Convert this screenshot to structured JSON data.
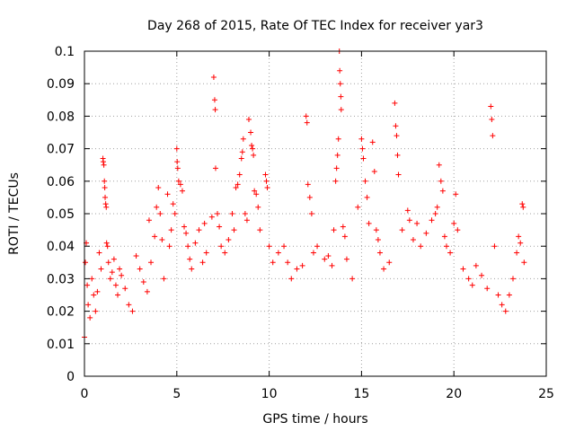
{
  "chart_data": {
    "type": "scatter",
    "title": "Day 268 of 2015, Rate Of TEC Index for receiver yar3",
    "xlabel": "GPS time / hours",
    "ylabel": "ROTI / TECUs",
    "xlim": [
      0,
      25
    ],
    "ylim": [
      0,
      0.1
    ],
    "xticks": [
      "0",
      "5",
      "10",
      "15",
      "20",
      "25"
    ],
    "yticks": [
      "0",
      "0.01",
      "0.02",
      "0.03",
      "0.04",
      "0.05",
      "0.06",
      "0.07",
      "0.08",
      "0.09",
      "0.1"
    ],
    "grid": true,
    "marker": "+",
    "color": "#ff0000",
    "series": [
      {
        "name": "",
        "points": [
          [
            0.0,
            0.012
          ],
          [
            0.05,
            0.035
          ],
          [
            0.1,
            0.041
          ],
          [
            0.15,
            0.028
          ],
          [
            0.2,
            0.022
          ],
          [
            0.3,
            0.018
          ],
          [
            0.4,
            0.03
          ],
          [
            0.5,
            0.025
          ],
          [
            0.6,
            0.02
          ],
          [
            0.7,
            0.026
          ],
          [
            0.8,
            0.038
          ],
          [
            0.9,
            0.033
          ],
          [
            1.0,
            0.067
          ],
          [
            1.02,
            0.066
          ],
          [
            1.05,
            0.065
          ],
          [
            1.08,
            0.06
          ],
          [
            1.1,
            0.058
          ],
          [
            1.12,
            0.055
          ],
          [
            1.15,
            0.053
          ],
          [
            1.18,
            0.052
          ],
          [
            1.2,
            0.041
          ],
          [
            1.25,
            0.04
          ],
          [
            1.3,
            0.035
          ],
          [
            1.4,
            0.03
          ],
          [
            1.5,
            0.032
          ],
          [
            1.6,
            0.036
          ],
          [
            1.7,
            0.028
          ],
          [
            1.8,
            0.025
          ],
          [
            1.9,
            0.033
          ],
          [
            2.0,
            0.031
          ],
          [
            2.2,
            0.027
          ],
          [
            2.4,
            0.022
          ],
          [
            2.6,
            0.02
          ],
          [
            2.8,
            0.037
          ],
          [
            3.0,
            0.033
          ],
          [
            3.2,
            0.029
          ],
          [
            3.4,
            0.026
          ],
          [
            3.5,
            0.048
          ],
          [
            3.6,
            0.035
          ],
          [
            3.8,
            0.043
          ],
          [
            3.9,
            0.052
          ],
          [
            4.0,
            0.058
          ],
          [
            4.1,
            0.05
          ],
          [
            4.2,
            0.042
          ],
          [
            4.3,
            0.03
          ],
          [
            4.5,
            0.056
          ],
          [
            4.6,
            0.04
          ],
          [
            4.7,
            0.045
          ],
          [
            4.8,
            0.053
          ],
          [
            4.9,
            0.05
          ],
          [
            5.0,
            0.07
          ],
          [
            5.02,
            0.066
          ],
          [
            5.05,
            0.064
          ],
          [
            5.1,
            0.06
          ],
          [
            5.2,
            0.059
          ],
          [
            5.3,
            0.057
          ],
          [
            5.4,
            0.046
          ],
          [
            5.5,
            0.044
          ],
          [
            5.6,
            0.04
          ],
          [
            5.7,
            0.036
          ],
          [
            5.8,
            0.033
          ],
          [
            6.0,
            0.041
          ],
          [
            6.2,
            0.045
          ],
          [
            6.4,
            0.035
          ],
          [
            6.5,
            0.047
          ],
          [
            6.6,
            0.038
          ],
          [
            6.9,
            0.049
          ],
          [
            7.0,
            0.092
          ],
          [
            7.05,
            0.085
          ],
          [
            7.08,
            0.082
          ],
          [
            7.1,
            0.064
          ],
          [
            7.2,
            0.05
          ],
          [
            7.3,
            0.046
          ],
          [
            7.4,
            0.04
          ],
          [
            7.6,
            0.038
          ],
          [
            7.8,
            0.042
          ],
          [
            8.0,
            0.05
          ],
          [
            8.1,
            0.045
          ],
          [
            8.2,
            0.058
          ],
          [
            8.3,
            0.059
          ],
          [
            8.4,
            0.062
          ],
          [
            8.5,
            0.067
          ],
          [
            8.55,
            0.069
          ],
          [
            8.6,
            0.073
          ],
          [
            8.7,
            0.05
          ],
          [
            8.8,
            0.048
          ],
          [
            8.9,
            0.079
          ],
          [
            9.0,
            0.075
          ],
          [
            9.05,
            0.071
          ],
          [
            9.1,
            0.07
          ],
          [
            9.15,
            0.068
          ],
          [
            9.2,
            0.057
          ],
          [
            9.3,
            0.056
          ],
          [
            9.4,
            0.052
          ],
          [
            9.5,
            0.045
          ],
          [
            9.8,
            0.062
          ],
          [
            9.85,
            0.06
          ],
          [
            9.9,
            0.058
          ],
          [
            10.0,
            0.04
          ],
          [
            10.2,
            0.035
          ],
          [
            10.5,
            0.038
          ],
          [
            10.8,
            0.04
          ],
          [
            11.0,
            0.035
          ],
          [
            11.2,
            0.03
          ],
          [
            11.5,
            0.033
          ],
          [
            11.8,
            0.034
          ],
          [
            12.0,
            0.08
          ],
          [
            12.05,
            0.078
          ],
          [
            12.1,
            0.059
          ],
          [
            12.2,
            0.055
          ],
          [
            12.3,
            0.05
          ],
          [
            12.4,
            0.038
          ],
          [
            12.6,
            0.04
          ],
          [
            13.0,
            0.036
          ],
          [
            13.2,
            0.037
          ],
          [
            13.4,
            0.034
          ],
          [
            13.5,
            0.045
          ],
          [
            13.6,
            0.06
          ],
          [
            13.65,
            0.064
          ],
          [
            13.7,
            0.068
          ],
          [
            13.75,
            0.073
          ],
          [
            13.8,
            0.1
          ],
          [
            13.82,
            0.094
          ],
          [
            13.85,
            0.09
          ],
          [
            13.88,
            0.086
          ],
          [
            13.9,
            0.082
          ],
          [
            14.0,
            0.046
          ],
          [
            14.1,
            0.043
          ],
          [
            14.2,
            0.036
          ],
          [
            14.5,
            0.03
          ],
          [
            14.8,
            0.052
          ],
          [
            15.0,
            0.073
          ],
          [
            15.05,
            0.07
          ],
          [
            15.1,
            0.067
          ],
          [
            15.2,
            0.06
          ],
          [
            15.3,
            0.055
          ],
          [
            15.4,
            0.047
          ],
          [
            15.6,
            0.072
          ],
          [
            15.7,
            0.063
          ],
          [
            15.8,
            0.045
          ],
          [
            15.9,
            0.042
          ],
          [
            16.0,
            0.038
          ],
          [
            16.2,
            0.033
          ],
          [
            16.5,
            0.035
          ],
          [
            16.8,
            0.084
          ],
          [
            16.85,
            0.077
          ],
          [
            16.9,
            0.074
          ],
          [
            16.95,
            0.068
          ],
          [
            17.0,
            0.062
          ],
          [
            17.2,
            0.045
          ],
          [
            17.5,
            0.051
          ],
          [
            17.6,
            0.048
          ],
          [
            17.8,
            0.042
          ],
          [
            18.0,
            0.047
          ],
          [
            18.2,
            0.04
          ],
          [
            18.5,
            0.044
          ],
          [
            18.8,
            0.048
          ],
          [
            19.0,
            0.05
          ],
          [
            19.1,
            0.052
          ],
          [
            19.2,
            0.065
          ],
          [
            19.3,
            0.06
          ],
          [
            19.4,
            0.057
          ],
          [
            19.5,
            0.043
          ],
          [
            19.6,
            0.04
          ],
          [
            19.8,
            0.038
          ],
          [
            20.0,
            0.047
          ],
          [
            20.1,
            0.056
          ],
          [
            20.2,
            0.045
          ],
          [
            20.5,
            0.033
          ],
          [
            20.8,
            0.03
          ],
          [
            21.0,
            0.028
          ],
          [
            21.2,
            0.034
          ],
          [
            21.5,
            0.031
          ],
          [
            21.8,
            0.027
          ],
          [
            22.0,
            0.083
          ],
          [
            22.05,
            0.079
          ],
          [
            22.1,
            0.074
          ],
          [
            22.2,
            0.04
          ],
          [
            22.4,
            0.025
          ],
          [
            22.6,
            0.022
          ],
          [
            22.8,
            0.02
          ],
          [
            23.0,
            0.025
          ],
          [
            23.2,
            0.03
          ],
          [
            23.4,
            0.038
          ],
          [
            23.5,
            0.043
          ],
          [
            23.6,
            0.041
          ],
          [
            23.7,
            0.053
          ],
          [
            23.75,
            0.052
          ],
          [
            23.8,
            0.035
          ]
        ]
      }
    ]
  }
}
